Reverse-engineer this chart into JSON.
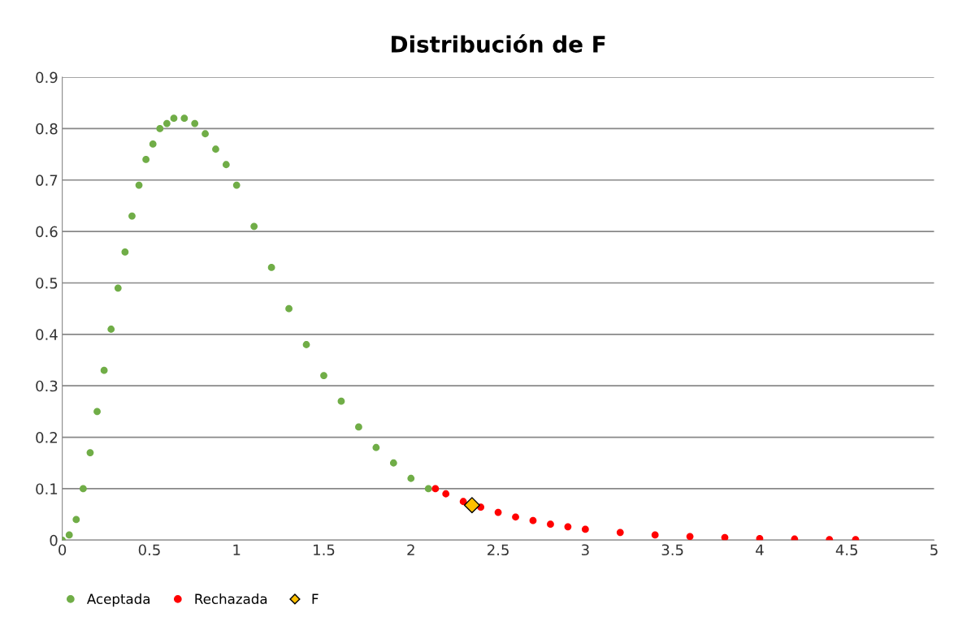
{
  "chart_data": {
    "type": "scatter",
    "title": "Distribución de F",
    "xlim": [
      0,
      5
    ],
    "xticks": [
      0,
      0.5,
      1,
      1.5,
      2,
      2.5,
      3,
      3.5,
      4,
      4.5,
      5
    ],
    "ylim": [
      0,
      0.9
    ],
    "yticks": [
      0,
      0.1,
      0.2,
      0.3,
      0.4,
      0.5,
      0.6,
      0.7,
      0.8,
      0.9
    ],
    "grid": "y",
    "legend": "bottom left",
    "series": [
      {
        "name": "Aceptada",
        "color": "#70ad47",
        "marker": "circle",
        "x": [
          0,
          0.04,
          0.08,
          0.12,
          0.16,
          0.2,
          0.24,
          0.28,
          0.32,
          0.36,
          0.4,
          0.44,
          0.48,
          0.52,
          0.56,
          0.6,
          0.64,
          0.7,
          0.76,
          0.82,
          0.88,
          0.94,
          1.0,
          1.1,
          1.2,
          1.3,
          1.4,
          1.5,
          1.6,
          1.7,
          1.8,
          1.9,
          2.0,
          2.1
        ],
        "values": [
          0,
          0.01,
          0.04,
          0.1,
          0.17,
          0.25,
          0.33,
          0.41,
          0.49,
          0.56,
          0.63,
          0.69,
          0.74,
          0.77,
          0.8,
          0.81,
          0.82,
          0.82,
          0.81,
          0.79,
          0.76,
          0.73,
          0.69,
          0.61,
          0.53,
          0.45,
          0.38,
          0.32,
          0.27,
          0.22,
          0.18,
          0.15,
          0.12,
          0.1
        ]
      },
      {
        "name": "Rechazada",
        "color": "#ff0000",
        "marker": "circle",
        "x": [
          2.14,
          2.2,
          2.3,
          2.4,
          2.5,
          2.6,
          2.7,
          2.8,
          2.9,
          3.0,
          3.2,
          3.4,
          3.6,
          3.8,
          4.0,
          4.2,
          4.4,
          4.55
        ],
        "values": [
          0.1,
          0.09,
          0.075,
          0.064,
          0.054,
          0.045,
          0.038,
          0.031,
          0.026,
          0.021,
          0.015,
          0.01,
          0.007,
          0.005,
          0.003,
          0.002,
          0.001,
          0.001
        ]
      },
      {
        "name": "F",
        "color": "#ffc000",
        "marker": "diamond",
        "x": [
          2.35
        ],
        "values": [
          0.068
        ]
      }
    ]
  }
}
